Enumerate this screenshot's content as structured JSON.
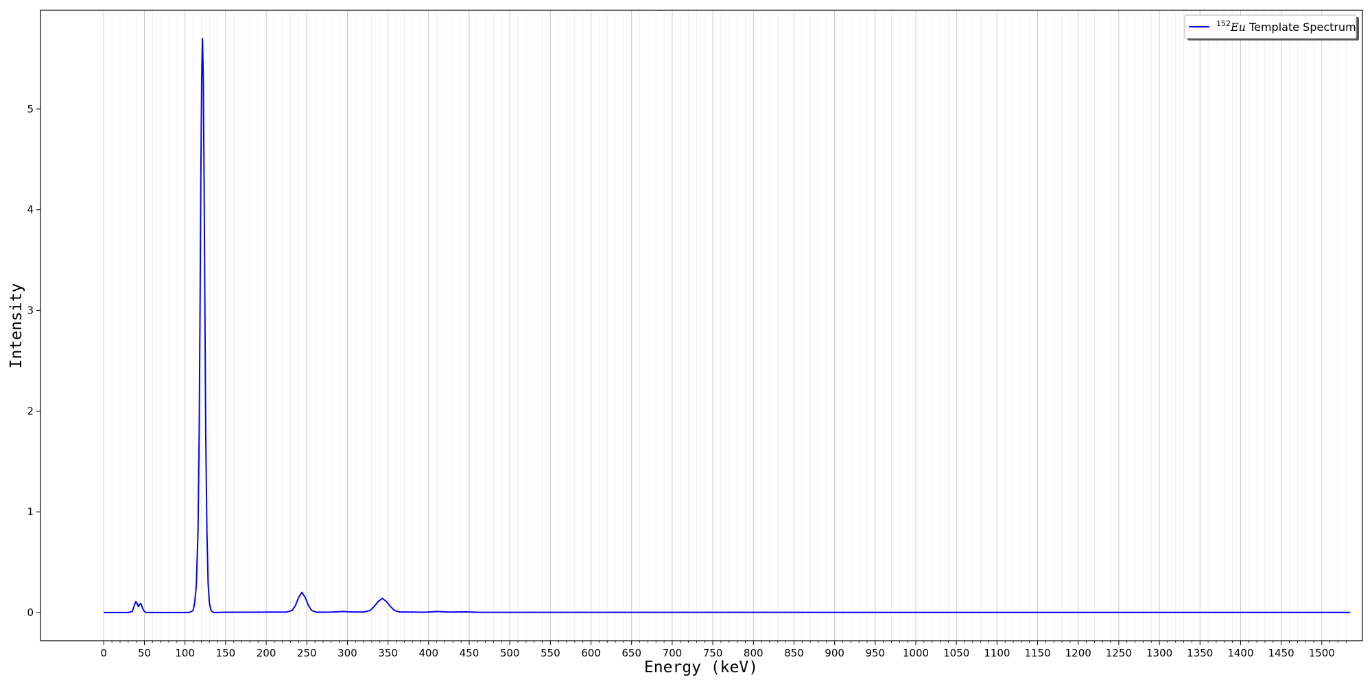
{
  "chart_data": {
    "type": "line",
    "xlabel": "Energy (keV)",
    "ylabel": "Intensity",
    "xlim": [
      -78,
      1550
    ],
    "ylim": [
      -0.28,
      5.98
    ],
    "grid": "vertical",
    "legend_position": "top-right",
    "x_ticks": [
      "0",
      "50",
      "100",
      "150",
      "200",
      "250",
      "300",
      "350",
      "400",
      "450",
      "500",
      "550",
      "600",
      "650",
      "700",
      "750",
      "800",
      "850",
      "900",
      "950",
      "1000",
      "1050",
      "1100",
      "1150",
      "1200",
      "1250",
      "1300",
      "1350",
      "1400",
      "1450",
      "1500"
    ],
    "y_ticks": [
      "0",
      "1",
      "2",
      "3",
      "4",
      "5"
    ],
    "series": [
      {
        "name_superscript": "152",
        "name_italic": "Eu",
        "name_rest": " Template Spectrum",
        "color": "#0000ff",
        "points": [
          [
            0,
            0
          ],
          [
            30,
            0
          ],
          [
            35,
            0.01
          ],
          [
            38,
            0.08
          ],
          [
            39.5,
            0.11
          ],
          [
            41,
            0.09
          ],
          [
            42.5,
            0.06
          ],
          [
            44,
            0.08
          ],
          [
            45.5,
            0.09
          ],
          [
            47,
            0.06
          ],
          [
            49,
            0.02
          ],
          [
            52,
            0.0
          ],
          [
            80,
            0
          ],
          [
            105,
            0
          ],
          [
            110,
            0.02
          ],
          [
            112,
            0.1
          ],
          [
            114,
            0.28
          ],
          [
            116,
            0.8
          ],
          [
            117.5,
            1.8
          ],
          [
            118.5,
            3.0
          ],
          [
            119.5,
            4.3
          ],
          [
            120.5,
            5.3
          ],
          [
            121.5,
            5.7
          ],
          [
            122.5,
            5.3
          ],
          [
            123.5,
            4.3
          ],
          [
            124.5,
            3.0
          ],
          [
            125.5,
            1.8
          ],
          [
            127,
            0.8
          ],
          [
            128.5,
            0.28
          ],
          [
            130,
            0.1
          ],
          [
            132,
            0.02
          ],
          [
            135,
            0.0
          ],
          [
            150,
            0.003
          ],
          [
            200,
            0.004
          ],
          [
            225,
            0.004
          ],
          [
            232,
            0.02
          ],
          [
            236,
            0.07
          ],
          [
            240,
            0.15
          ],
          [
            244,
            0.2
          ],
          [
            248,
            0.15
          ],
          [
            252,
            0.07
          ],
          [
            256,
            0.02
          ],
          [
            262,
            0.003
          ],
          [
            280,
            0.004
          ],
          [
            295,
            0.01
          ],
          [
            305,
            0.005
          ],
          [
            320,
            0.005
          ],
          [
            328,
            0.02
          ],
          [
            333,
            0.06
          ],
          [
            338,
            0.11
          ],
          [
            343,
            0.14
          ],
          [
            348,
            0.11
          ],
          [
            353,
            0.06
          ],
          [
            358,
            0.02
          ],
          [
            364,
            0.005
          ],
          [
            380,
            0.004
          ],
          [
            395,
            0.003
          ],
          [
            411,
            0.01
          ],
          [
            425,
            0.004
          ],
          [
            444,
            0.007
          ],
          [
            460,
            0.003
          ],
          [
            500,
            0.002
          ],
          [
            700,
            0.002
          ],
          [
            1000,
            0.001
          ],
          [
            1200,
            0.001
          ],
          [
            1400,
            0.001
          ],
          [
            1535,
            0.001
          ]
        ]
      }
    ]
  }
}
